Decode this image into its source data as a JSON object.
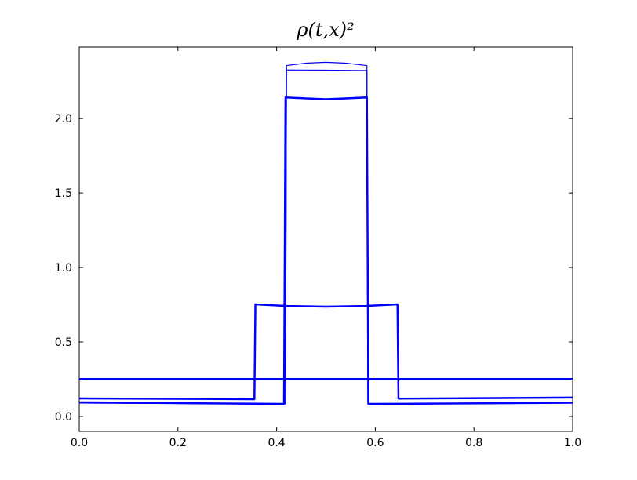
{
  "chart_data": {
    "type": "line",
    "title": "ρ(t,x)²",
    "xlim": [
      0,
      1
    ],
    "ylim": [
      -0.1,
      2.48
    ],
    "xticks": [
      {
        "value": 0,
        "label": "0.0"
      },
      0.2,
      0.4,
      0.6,
      0.8,
      {
        "value": 1,
        "label": "1.0"
      }
    ],
    "yticks": [
      {
        "value": 0,
        "label": "0.0"
      },
      0.5,
      {
        "value": 1,
        "label": "1.0"
      },
      1.5,
      {
        "value": 2,
        "label": "2.0"
      }
    ],
    "grid": false,
    "series": [
      {
        "color": "#0000ff",
        "linewidth": 3,
        "x": [
          0,
          1
        ],
        "values": [
          0.25,
          0.25
        ]
      },
      {
        "color": "#0000ff",
        "linewidth": 2.5,
        "x": [
          0,
          0.355,
          0.357,
          0.42,
          0.5,
          0.58,
          0.645,
          0.647,
          1
        ],
        "values": [
          0.121,
          0.116,
          0.753,
          0.742,
          0.737,
          0.742,
          0.753,
          0.12,
          0.127
        ]
      },
      {
        "color": "#0000ff",
        "linewidth": 2.5,
        "x": [
          0,
          0.415,
          0.418,
          0.46,
          0.5,
          0.54,
          0.583,
          0.586,
          1
        ],
        "values": [
          0.095,
          0.084,
          2.142,
          2.135,
          2.13,
          2.135,
          2.142,
          0.084,
          0.092
        ]
      },
      {
        "color": "#0000ff",
        "linewidth": 1.2,
        "x": [
          0,
          0.418,
          0.42,
          0.5,
          0.583,
          0.585,
          1
        ],
        "values": [
          0.09,
          0.085,
          2.326,
          2.325,
          2.322,
          0.085,
          0.09
        ]
      },
      {
        "color": "#0000ff",
        "linewidth": 1.2,
        "x": [
          0,
          0.418,
          0.42,
          0.46,
          0.5,
          0.54,
          0.583,
          0.585,
          1
        ],
        "values": [
          0.09,
          0.085,
          2.356,
          2.372,
          2.378,
          2.372,
          2.356,
          0.085,
          0.09
        ]
      }
    ]
  }
}
